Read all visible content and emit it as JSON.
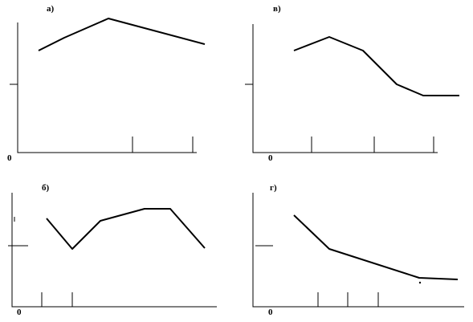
{
  "panels": [
    {
      "label": "а)",
      "origin": "0"
    },
    {
      "label": "в)",
      "origin": "0"
    },
    {
      "label": "б)",
      "origin": "0"
    },
    {
      "label": "г)",
      "origin": "0"
    }
  ]
}
